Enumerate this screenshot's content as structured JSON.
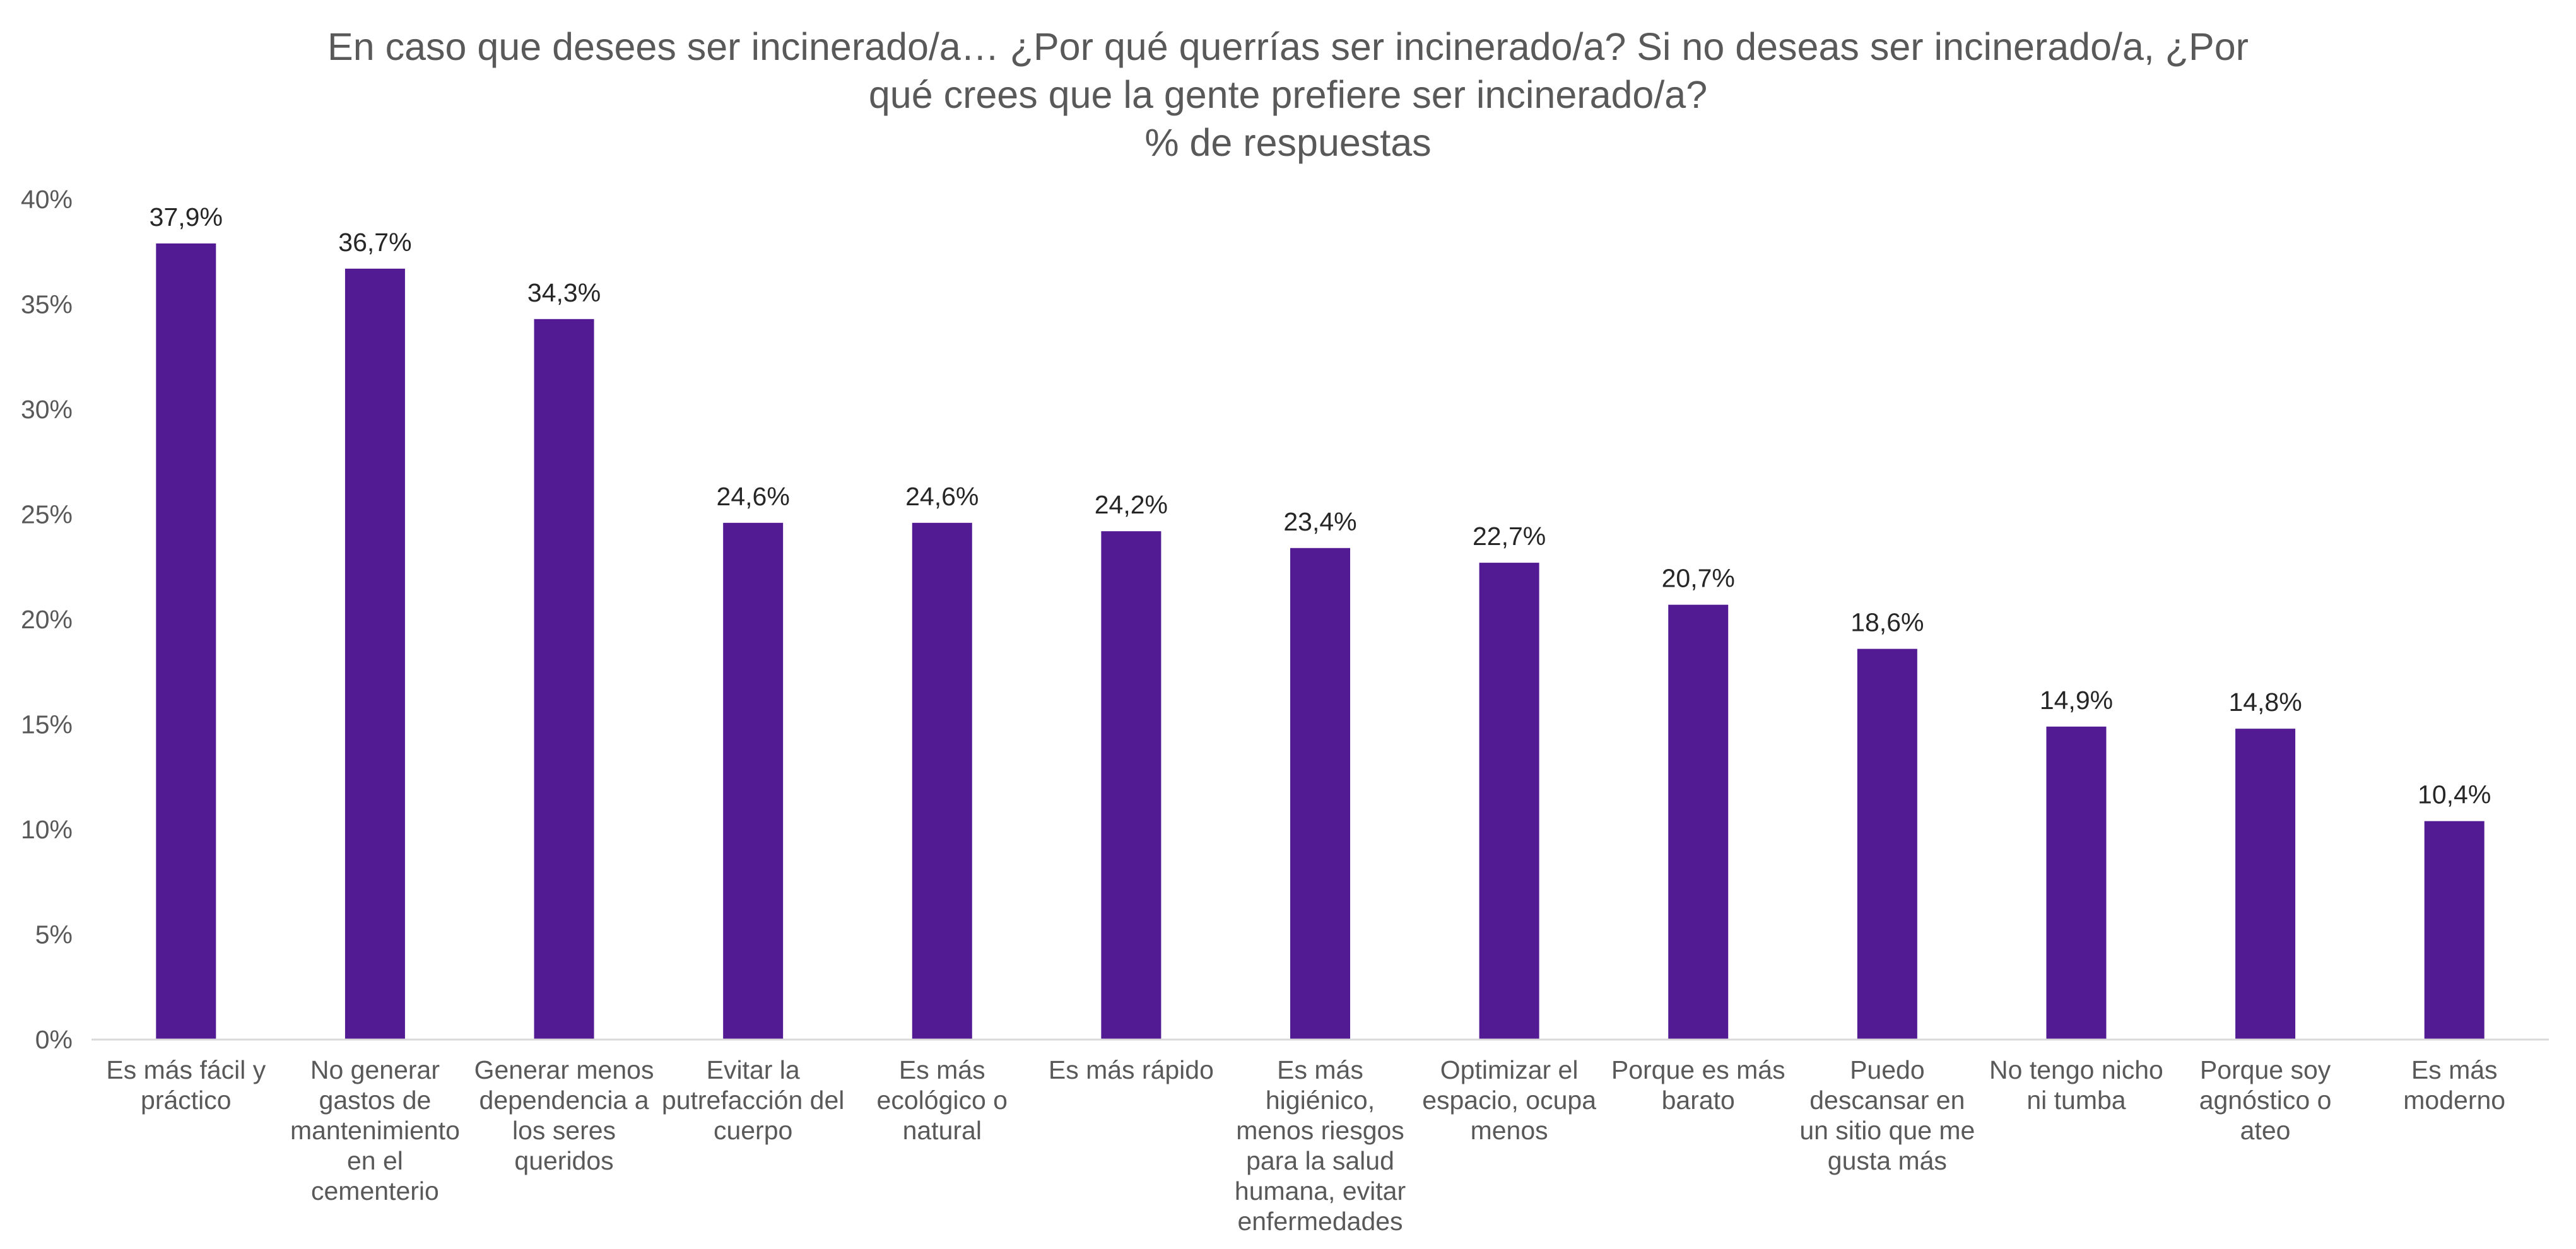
{
  "chart_data": {
    "type": "bar",
    "title_lines": [
      "En caso que desees ser incinerado/a… ¿Por qué querrías ser incinerado/a? Si no deseas ser incinerado/a, ¿Por",
      "qué crees que la gente prefiere ser incinerado/a?",
      "% de respuestas"
    ],
    "categories": [
      "Es más fácil y práctico",
      "No generar gastos de mantenimiento en el cementerio",
      "Generar menos dependencia a los seres queridos",
      "Evitar la putrefacción del cuerpo",
      "Es más ecológico o natural",
      "Es más rápido",
      "Es más higiénico, menos riesgos para la salud humana, evitar enfermedades",
      "Optimizar el espacio, ocupa menos",
      "Porque es más barato",
      "Puedo descansar en un sitio que me gusta más",
      "No tengo nicho ni tumba",
      "Porque soy agnóstico o ateo",
      "Es más moderno"
    ],
    "category_label_lines": [
      [
        "Es más fácil y",
        "práctico"
      ],
      [
        "No generar",
        "gastos de",
        "mantenimiento",
        "en el",
        "cementerio"
      ],
      [
        "Generar menos",
        "dependencia a",
        "los seres",
        "queridos"
      ],
      [
        "Evitar la",
        "putrefacción del",
        "cuerpo"
      ],
      [
        "Es más",
        "ecológico o",
        "natural"
      ],
      [
        "Es más rápido"
      ],
      [
        "Es más",
        "higiénico,",
        "menos riesgos",
        "para la salud",
        "humana, evitar",
        "enfermedades"
      ],
      [
        "Optimizar el",
        "espacio, ocupa",
        "menos"
      ],
      [
        "Porque es más",
        "barato"
      ],
      [
        "Puedo",
        "descansar en",
        "un sitio que me",
        "gusta más"
      ],
      [
        "No tengo nicho",
        "ni tumba"
      ],
      [
        "Porque soy",
        "agnóstico o",
        "ateo"
      ],
      [
        "Es más",
        "moderno"
      ]
    ],
    "values": [
      37.9,
      36.7,
      34.3,
      24.6,
      24.6,
      24.2,
      23.4,
      22.7,
      20.7,
      18.6,
      14.9,
      14.8,
      10.4
    ],
    "data_labels": [
      "37,9%",
      "36,7%",
      "34,3%",
      "24,6%",
      "24,6%",
      "24,2%",
      "23,4%",
      "22,7%",
      "20,7%",
      "18,6%",
      "14,9%",
      "14,8%",
      "10,4%"
    ],
    "ylim": [
      0,
      40
    ],
    "yticks": [
      0,
      5,
      10,
      15,
      20,
      25,
      30,
      35,
      40
    ],
    "ytick_labels": [
      "0%",
      "5%",
      "10%",
      "15%",
      "20%",
      "25%",
      "30%",
      "35%",
      "40%"
    ],
    "grid": false,
    "legend": "none",
    "bar_color": "#521b93",
    "axis_color": "#d9d9d9"
  }
}
